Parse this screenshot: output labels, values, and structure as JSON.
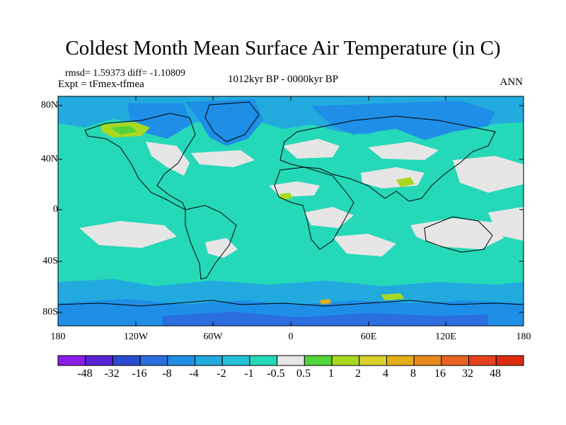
{
  "title": "Coldest Month Mean Surface Air Temperature (in C)",
  "stats": "rmsd= 1.59373 diff= -1.10809",
  "experiment": "Expt = tFmex-tfmea",
  "period": "1012kyr BP - 0000kyr BP",
  "season": "ANN",
  "lat_labels": [
    "80N",
    "40N",
    "0",
    "40S",
    "80S"
  ],
  "lon_labels": [
    "180",
    "120W",
    "60W",
    "0",
    "60E",
    "120E",
    "180"
  ],
  "colorbar": {
    "labels": [
      "-48",
      "-32",
      "-16",
      "-8",
      "-4",
      "-2",
      "-1",
      "-0.5",
      "0.5",
      "1",
      "2",
      "4",
      "8",
      "16",
      "32",
      "48"
    ],
    "colors": [
      "#8a1ee6",
      "#5a24d6",
      "#2a4ad0",
      "#2a6ee0",
      "#1e8ee6",
      "#22aadf",
      "#26c0d6",
      "#25d8b8",
      "#e6e6e6",
      "#52d43a",
      "#a8d820",
      "#d8d02a",
      "#e6ae18",
      "#e88a1c",
      "#e8641e",
      "#e6401e",
      "#de2a10"
    ]
  },
  "map_colors": {
    "ocean_main": "#25d8b8",
    "cool": "#22aadf",
    "cooler": "#1e8ee6",
    "coldest": "#2a6ee0",
    "neutral": "#e6e6e6",
    "warm_green": "#52d43a",
    "warm_yellow": "#a8d820",
    "warm_orange": "#e6ae18"
  }
}
